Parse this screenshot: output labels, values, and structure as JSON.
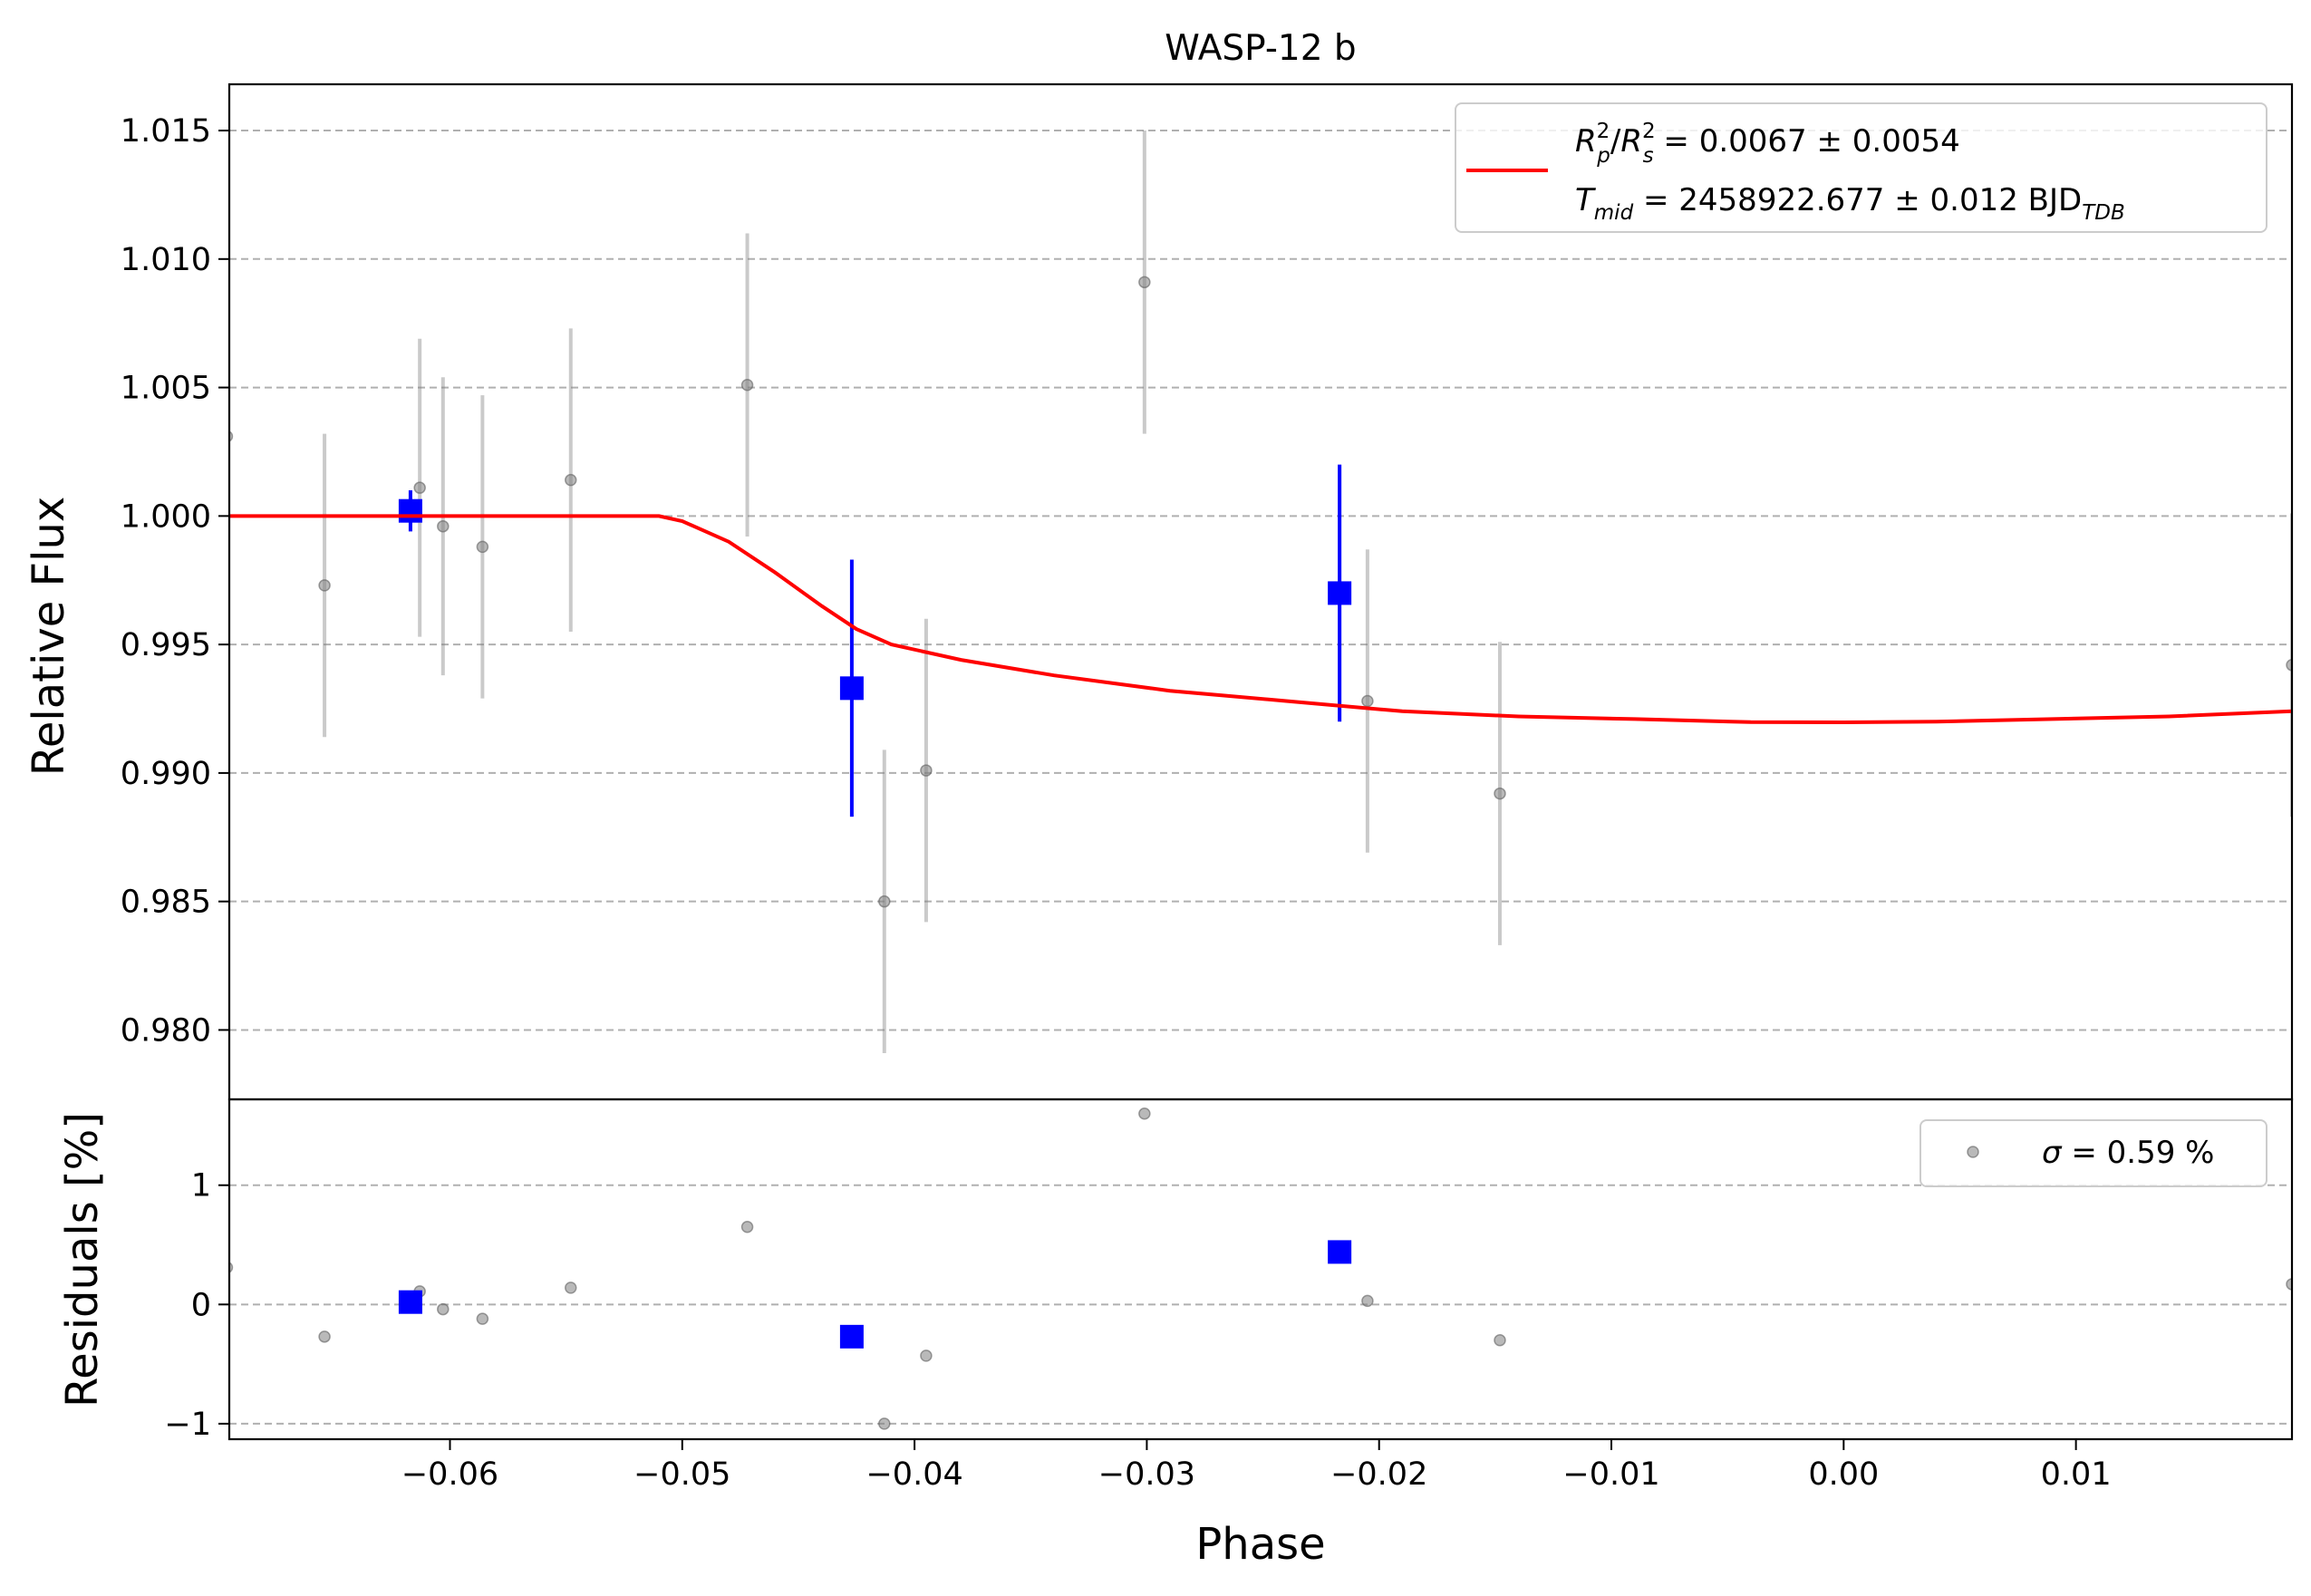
{
  "chart_data": [
    {
      "type": "scatter",
      "title": "WASP-12 b",
      "xlabel": "",
      "ylabel": "Relative Flux",
      "xlim": [
        -0.0695,
        0.0193
      ],
      "ylim": [
        0.9773,
        1.0168
      ],
      "grid": "y-dashed",
      "yticks": [
        0.98,
        0.985,
        0.99,
        0.995,
        1.0,
        1.005,
        1.01,
        1.015
      ],
      "ytick_labels": [
        "0.980",
        "0.985",
        "0.990",
        "0.995",
        "1.000",
        "1.005",
        "1.010",
        "1.015"
      ],
      "legend": {
        "placement": "top-right",
        "line1": {
          "sym": "R",
          "sup_p": "2",
          "sub_p": "p",
          "slash": "/",
          "sup_s": "2",
          "sub_s": "s",
          "value": " = 0.0067 ± 0.0054"
        },
        "line2": {
          "sym": "T",
          "sub": "mid",
          "value": " = 2458922.677 ± 0.012 BJD",
          "unit_sub": "TDB"
        }
      },
      "series": [
        {
          "kind": "data",
          "color": "#808080",
          "points": [
            {
              "x": -0.0696,
              "y": 1.0031,
              "err": 0.0058
            },
            {
              "x": -0.0654,
              "y": 0.9973,
              "err": 0.0059
            },
            {
              "x": -0.0613,
              "y": 1.0011,
              "err": 0.0058
            },
            {
              "x": -0.0603,
              "y": 0.9996,
              "err": 0.0058
            },
            {
              "x": -0.0586,
              "y": 0.9988,
              "err": 0.0059
            },
            {
              "x": -0.0548,
              "y": 1.0014,
              "err": 0.0059
            },
            {
              "x": -0.0472,
              "y": 1.0051,
              "err": 0.0059
            },
            {
              "x": -0.0413,
              "y": 0.985,
              "err": 0.0059
            },
            {
              "x": -0.0395,
              "y": 0.9901,
              "err": 0.0059
            },
            {
              "x": -0.0301,
              "y": 1.0091,
              "err": 0.0059
            },
            {
              "x": -0.0205,
              "y": 0.9928,
              "err": 0.0059
            },
            {
              "x": -0.0148,
              "y": 0.9892,
              "err": 0.0059
            },
            {
              "x": 0.0193,
              "y": 0.9942,
              "err": 0.0059
            }
          ]
        },
        {
          "kind": "binned",
          "color": "#0000ff",
          "points": [
            {
              "x": -0.0617,
              "y": 1.0002,
              "err": 0.0008
            },
            {
              "x": -0.0427,
              "y": 0.9933,
              "err": 0.005
            },
            {
              "x": -0.0217,
              "y": 0.997,
              "err": 0.005
            }
          ]
        },
        {
          "kind": "model",
          "color": "#ff0000",
          "x": [
            -0.0695,
            -0.051,
            -0.05,
            -0.048,
            -0.046,
            -0.044,
            -0.0425,
            -0.041,
            -0.038,
            -0.034,
            -0.029,
            -0.024,
            -0.019,
            -0.014,
            -0.009,
            -0.004,
            0.0,
            0.004,
            0.009,
            0.014,
            0.0193
          ],
          "y": [
            1.0,
            1.0,
            0.9998,
            0.999,
            0.9978,
            0.9965,
            0.9956,
            0.995,
            0.9944,
            0.9938,
            0.9932,
            0.9928,
            0.9924,
            0.9922,
            0.9921,
            0.99198,
            0.99197,
            0.992,
            0.9921,
            0.9922,
            0.9924
          ]
        }
      ]
    },
    {
      "type": "scatter",
      "xlabel": "Phase",
      "ylabel": "Residuals [%]",
      "xlim": [
        -0.0695,
        0.0193
      ],
      "ylim": [
        -1.13,
        1.72
      ],
      "grid": "y-dashed",
      "yticks": [
        -1,
        0,
        1
      ],
      "ytick_labels": [
        "−1",
        "0",
        "1"
      ],
      "xticks": [
        -0.06,
        -0.05,
        -0.04,
        -0.03,
        -0.02,
        -0.01,
        0.0,
        0.01
      ],
      "xtick_labels": [
        "−0.06",
        "−0.05",
        "−0.04",
        "−0.03",
        "−0.02",
        "−0.01",
        "0.00",
        "0.01"
      ],
      "legend": {
        "placement": "top-right",
        "sym": "σ",
        "value": " = 0.59 %"
      },
      "series": [
        {
          "kind": "data",
          "color": "#808080",
          "points": [
            {
              "x": -0.0696,
              "y": 0.31
            },
            {
              "x": -0.0654,
              "y": -0.27
            },
            {
              "x": -0.0613,
              "y": 0.11
            },
            {
              "x": -0.0603,
              "y": -0.04
            },
            {
              "x": -0.0586,
              "y": -0.12
            },
            {
              "x": -0.0548,
              "y": 0.14
            },
            {
              "x": -0.0472,
              "y": 0.65
            },
            {
              "x": -0.0413,
              "y": -1.0
            },
            {
              "x": -0.0395,
              "y": -0.43
            },
            {
              "x": -0.0301,
              "y": 1.6
            },
            {
              "x": -0.0205,
              "y": 0.03
            },
            {
              "x": -0.0148,
              "y": -0.3
            },
            {
              "x": 0.0193,
              "y": 0.17
            }
          ]
        },
        {
          "kind": "binned",
          "color": "#0000ff",
          "points": [
            {
              "x": -0.0617,
              "y": 0.02
            },
            {
              "x": -0.0427,
              "y": -0.27
            },
            {
              "x": -0.0217,
              "y": 0.44
            }
          ]
        }
      ]
    }
  ]
}
